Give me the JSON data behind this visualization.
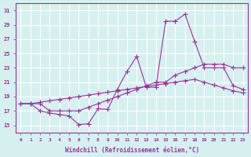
{
  "xlabel": "Windchill (Refroidissement éolien,°C)",
  "bg_color": "#d6f0f0",
  "line_color": "#993399",
  "grid_color": "#ffffff",
  "xlim": [
    0,
    23
  ],
  "ylim": [
    14,
    32
  ],
  "yticks": [
    15,
    17,
    19,
    21,
    23,
    25,
    27,
    29,
    31
  ],
  "xticks": [
    0,
    1,
    2,
    3,
    4,
    5,
    6,
    7,
    8,
    9,
    10,
    11,
    12,
    13,
    14,
    15,
    16,
    17,
    18,
    19,
    20,
    21,
    22,
    23
  ],
  "line1_x": [
    0,
    1,
    2,
    3,
    4,
    5,
    6,
    7,
    8,
    9,
    10,
    11,
    12,
    13,
    14,
    15,
    16,
    17,
    18,
    19,
    20,
    21,
    22,
    23
  ],
  "line1_y": [
    18,
    18,
    17,
    16.7,
    16.5,
    16.3,
    15.1,
    15.2,
    17.3,
    17.2,
    20,
    22.5,
    24.6,
    20.3,
    20.3,
    29.5,
    29.5,
    30.5,
    26.7,
    23,
    23,
    23,
    20.5,
    20
  ],
  "line2_x": [
    0,
    1,
    2,
    3,
    4,
    5,
    6,
    7,
    8,
    9,
    10,
    11,
    12,
    13,
    14,
    15,
    16,
    17,
    18,
    19,
    20,
    21,
    22,
    23
  ],
  "line2_y": [
    18,
    18,
    18,
    17,
    17,
    17,
    17,
    17.5,
    18,
    18.5,
    19,
    19.5,
    20,
    20.5,
    21,
    21,
    22,
    22.5,
    23,
    23.5,
    23.5,
    23.5,
    23,
    23
  ],
  "line3_x": [
    0,
    1,
    2,
    3,
    4,
    5,
    6,
    7,
    8,
    9,
    10,
    11,
    12,
    13,
    14,
    15,
    16,
    17,
    18,
    19,
    20,
    21,
    22,
    23
  ],
  "line3_y": [
    18,
    18,
    18.2,
    18.4,
    18.6,
    18.8,
    19,
    19.2,
    19.4,
    19.6,
    19.8,
    20.0,
    20.2,
    20.4,
    20.6,
    20.8,
    21.0,
    21.2,
    21.4,
    21.0,
    20.6,
    20.2,
    19.8,
    19.5
  ]
}
